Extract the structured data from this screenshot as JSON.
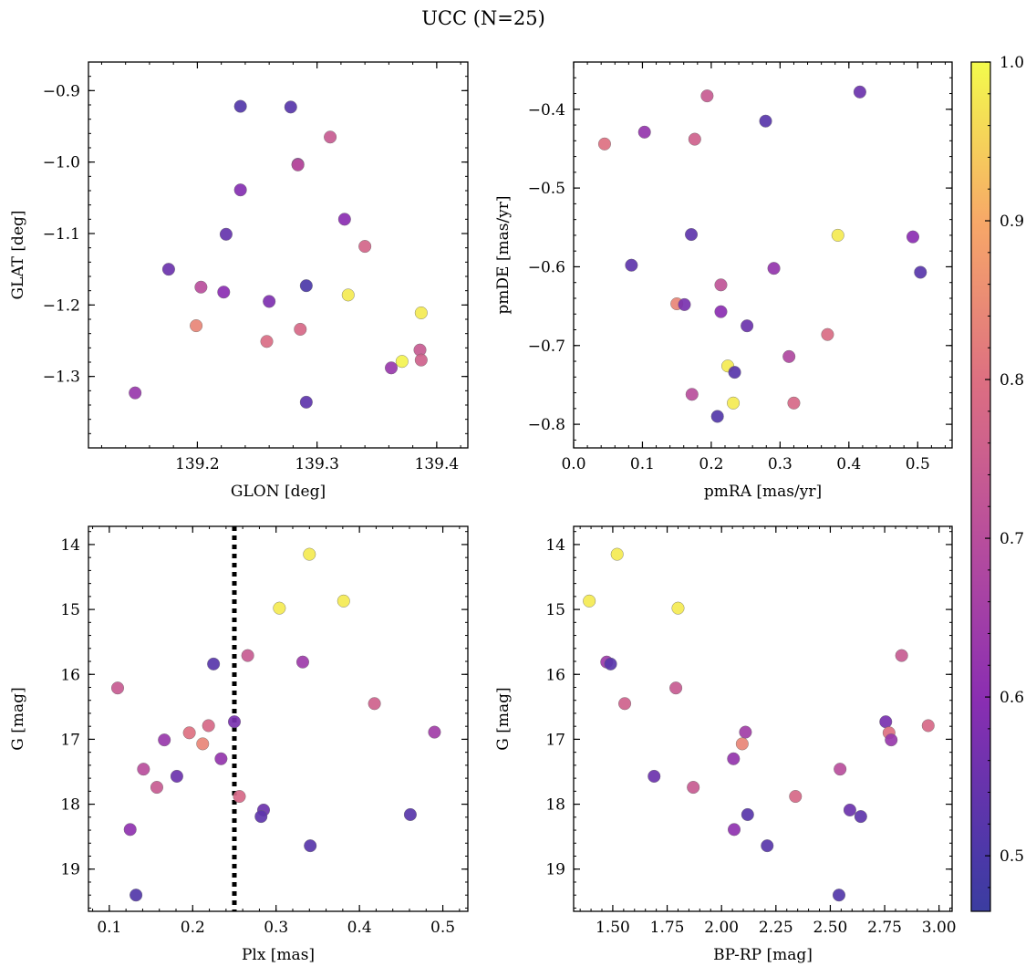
{
  "figure": {
    "title": "UCC (N=25)"
  },
  "colorbar": {
    "colormap": "plasma",
    "range": [
      0.465,
      1.0
    ],
    "ticks": [
      0.5,
      0.6,
      0.7,
      0.8,
      0.9,
      1.0
    ],
    "tick_labels": [
      "0.5",
      "0.6",
      "0.7",
      "0.8",
      "0.9",
      "1.0"
    ]
  },
  "chart_data": [
    {
      "type": "scatter",
      "xlabel": "GLON [deg]",
      "ylabel": "GLAT [deg]",
      "xlim": [
        139.109,
        139.426
      ],
      "ylim": [
        -1.4,
        -0.86
      ],
      "y_inverted": false,
      "xticks": [
        139.2,
        139.3,
        139.4
      ],
      "xtick_labels": [
        "139.2",
        "139.3",
        "139.4"
      ],
      "yticks": [
        -0.9,
        -1.0,
        -1.1,
        -1.2,
        -1.3
      ],
      "ytick_labels": [
        "−0.9",
        "−1.0",
        "−1.1",
        "−1.2",
        "−1.3"
      ],
      "points": [
        {
          "x": 139.236,
          "y": -0.922,
          "c": 0.51
        },
        {
          "x": 139.278,
          "y": -0.923,
          "c": 0.52
        },
        {
          "x": 139.311,
          "y": -0.965,
          "c": 0.74
        },
        {
          "x": 139.284,
          "y": -1.003,
          "c": 0.62
        },
        {
          "x": 139.284,
          "y": -1.004,
          "c": 0.7
        },
        {
          "x": 139.236,
          "y": -1.039,
          "c": 0.59
        },
        {
          "x": 139.323,
          "y": -1.08,
          "c": 0.6
        },
        {
          "x": 139.224,
          "y": -1.101,
          "c": 0.54
        },
        {
          "x": 139.34,
          "y": -1.118,
          "c": 0.77
        },
        {
          "x": 139.176,
          "y": -1.15,
          "c": 0.55
        },
        {
          "x": 139.203,
          "y": -1.175,
          "c": 0.7
        },
        {
          "x": 139.222,
          "y": -1.182,
          "c": 0.6
        },
        {
          "x": 139.291,
          "y": -1.173,
          "c": 0.5
        },
        {
          "x": 139.326,
          "y": -1.186,
          "c": 0.98
        },
        {
          "x": 139.26,
          "y": -1.195,
          "c": 0.58
        },
        {
          "x": 139.387,
          "y": -1.211,
          "c": 0.98
        },
        {
          "x": 139.199,
          "y": -1.229,
          "c": 0.84
        },
        {
          "x": 139.286,
          "y": -1.234,
          "c": 0.78
        },
        {
          "x": 139.258,
          "y": -1.251,
          "c": 0.79
        },
        {
          "x": 139.386,
          "y": -1.263,
          "c": 0.74
        },
        {
          "x": 139.371,
          "y": -1.279,
          "c": 0.99
        },
        {
          "x": 139.387,
          "y": -1.277,
          "c": 0.76
        },
        {
          "x": 139.362,
          "y": -1.288,
          "c": 0.63
        },
        {
          "x": 139.148,
          "y": -1.323,
          "c": 0.63
        },
        {
          "x": 139.291,
          "y": -1.336,
          "c": 0.53
        }
      ]
    },
    {
      "type": "scatter",
      "xlabel": "pmRA [mas/yr]",
      "ylabel": "pmDE [mas/yr]",
      "xlim": [
        0.0,
        0.55
      ],
      "ylim": [
        -0.83,
        -0.34
      ],
      "y_inverted": false,
      "xticks": [
        0.0,
        0.1,
        0.2,
        0.3,
        0.4,
        0.5
      ],
      "xtick_labels": [
        "0.0",
        "0.1",
        "0.2",
        "0.3",
        "0.4",
        "0.5"
      ],
      "yticks": [
        -0.4,
        -0.5,
        -0.6,
        -0.7,
        -0.8
      ],
      "ytick_labels": [
        "−0.4",
        "−0.5",
        "−0.6",
        "−0.7",
        "−0.8"
      ],
      "points": [
        {
          "x": 0.194,
          "y": -0.383,
          "c": 0.74
        },
        {
          "x": 0.416,
          "y": -0.378,
          "c": 0.55
        },
        {
          "x": 0.279,
          "y": -0.415,
          "c": 0.52
        },
        {
          "x": 0.103,
          "y": -0.429,
          "c": 0.62
        },
        {
          "x": 0.176,
          "y": -0.438,
          "c": 0.76
        },
        {
          "x": 0.045,
          "y": -0.444,
          "c": 0.8
        },
        {
          "x": 0.384,
          "y": -0.56,
          "c": 0.98
        },
        {
          "x": 0.171,
          "y": -0.559,
          "c": 0.53
        },
        {
          "x": 0.493,
          "y": -0.562,
          "c": 0.6
        },
        {
          "x": 0.084,
          "y": -0.598,
          "c": 0.53
        },
        {
          "x": 0.291,
          "y": -0.602,
          "c": 0.62
        },
        {
          "x": 0.504,
          "y": -0.607,
          "c": 0.52
        },
        {
          "x": 0.214,
          "y": -0.623,
          "c": 0.72
        },
        {
          "x": 0.15,
          "y": -0.647,
          "c": 0.84
        },
        {
          "x": 0.161,
          "y": -0.648,
          "c": 0.57
        },
        {
          "x": 0.214,
          "y": -0.657,
          "c": 0.6
        },
        {
          "x": 0.252,
          "y": -0.675,
          "c": 0.55
        },
        {
          "x": 0.369,
          "y": -0.686,
          "c": 0.79
        },
        {
          "x": 0.313,
          "y": -0.714,
          "c": 0.68
        },
        {
          "x": 0.224,
          "y": -0.726,
          "c": 0.98
        },
        {
          "x": 0.234,
          "y": -0.734,
          "c": 0.52
        },
        {
          "x": 0.172,
          "y": -0.762,
          "c": 0.7
        },
        {
          "x": 0.232,
          "y": -0.773,
          "c": 0.98
        },
        {
          "x": 0.32,
          "y": -0.773,
          "c": 0.78
        },
        {
          "x": 0.209,
          "y": -0.79,
          "c": 0.51
        }
      ]
    },
    {
      "type": "scatter",
      "xlabel": "Plx [mas]",
      "ylabel": "G [mag]",
      "xlim": [
        0.075,
        0.53
      ],
      "ylim": [
        19.65,
        13.72
      ],
      "y_inverted": true,
      "xticks": [
        0.1,
        0.2,
        0.3,
        0.4,
        0.5
      ],
      "xtick_labels": [
        "0.1",
        "0.2",
        "0.3",
        "0.4",
        "0.5"
      ],
      "yticks": [
        14,
        15,
        16,
        17,
        18,
        19
      ],
      "ytick_labels": [
        "14",
        "15",
        "16",
        "17",
        "18",
        "19"
      ],
      "vline": {
        "x": 0.25,
        "style": "dotted"
      },
      "points": [
        {
          "x": 0.34,
          "y": 14.15,
          "c": 0.98
        },
        {
          "x": 0.304,
          "y": 14.98,
          "c": 0.98
        },
        {
          "x": 0.381,
          "y": 14.87,
          "c": 0.98
        },
        {
          "x": 0.266,
          "y": 15.71,
          "c": 0.74
        },
        {
          "x": 0.332,
          "y": 15.81,
          "c": 0.64
        },
        {
          "x": 0.225,
          "y": 15.84,
          "c": 0.52
        },
        {
          "x": 0.11,
          "y": 16.21,
          "c": 0.74
        },
        {
          "x": 0.418,
          "y": 16.45,
          "c": 0.76
        },
        {
          "x": 0.25,
          "y": 16.73,
          "c": 0.57
        },
        {
          "x": 0.219,
          "y": 16.79,
          "c": 0.78
        },
        {
          "x": 0.196,
          "y": 16.9,
          "c": 0.8
        },
        {
          "x": 0.49,
          "y": 16.89,
          "c": 0.65
        },
        {
          "x": 0.166,
          "y": 17.01,
          "c": 0.63
        },
        {
          "x": 0.212,
          "y": 17.07,
          "c": 0.84
        },
        {
          "x": 0.234,
          "y": 17.3,
          "c": 0.62
        },
        {
          "x": 0.141,
          "y": 17.46,
          "c": 0.7
        },
        {
          "x": 0.181,
          "y": 17.57,
          "c": 0.55
        },
        {
          "x": 0.157,
          "y": 17.74,
          "c": 0.74
        },
        {
          "x": 0.256,
          "y": 17.88,
          "c": 0.78
        },
        {
          "x": 0.285,
          "y": 18.09,
          "c": 0.55
        },
        {
          "x": 0.282,
          "y": 18.19,
          "c": 0.53
        },
        {
          "x": 0.461,
          "y": 18.16,
          "c": 0.52
        },
        {
          "x": 0.125,
          "y": 18.39,
          "c": 0.61
        },
        {
          "x": 0.341,
          "y": 18.64,
          "c": 0.52
        },
        {
          "x": 0.132,
          "y": 19.4,
          "c": 0.51
        }
      ]
    },
    {
      "type": "scatter",
      "xlabel": "BP-RP [mag]",
      "ylabel": "G [mag]",
      "xlim": [
        1.32,
        3.06
      ],
      "ylim": [
        19.65,
        13.72
      ],
      "y_inverted": true,
      "xticks": [
        1.5,
        1.75,
        2.0,
        2.25,
        2.5,
        2.75,
        3.0
      ],
      "xtick_labels": [
        "1.50",
        "1.75",
        "2.00",
        "2.25",
        "2.50",
        "2.75",
        "3.00"
      ],
      "yticks": [
        14,
        15,
        16,
        17,
        18,
        19
      ],
      "ytick_labels": [
        "14",
        "15",
        "16",
        "17",
        "18",
        "19"
      ],
      "points": [
        {
          "x": 1.52,
          "y": 14.15,
          "c": 0.98
        },
        {
          "x": 1.392,
          "y": 14.87,
          "c": 0.98
        },
        {
          "x": 1.8,
          "y": 14.98,
          "c": 0.98
        },
        {
          "x": 2.828,
          "y": 15.71,
          "c": 0.74
        },
        {
          "x": 1.472,
          "y": 15.81,
          "c": 0.64
        },
        {
          "x": 1.49,
          "y": 15.84,
          "c": 0.52
        },
        {
          "x": 1.79,
          "y": 16.21,
          "c": 0.74
        },
        {
          "x": 1.555,
          "y": 16.45,
          "c": 0.76
        },
        {
          "x": 2.755,
          "y": 16.73,
          "c": 0.57
        },
        {
          "x": 2.95,
          "y": 16.79,
          "c": 0.78
        },
        {
          "x": 2.77,
          "y": 16.9,
          "c": 0.8
        },
        {
          "x": 2.11,
          "y": 16.89,
          "c": 0.65
        },
        {
          "x": 2.78,
          "y": 17.01,
          "c": 0.63
        },
        {
          "x": 2.095,
          "y": 17.07,
          "c": 0.84
        },
        {
          "x": 2.055,
          "y": 17.3,
          "c": 0.62
        },
        {
          "x": 2.545,
          "y": 17.46,
          "c": 0.7
        },
        {
          "x": 1.69,
          "y": 17.57,
          "c": 0.55
        },
        {
          "x": 1.87,
          "y": 17.74,
          "c": 0.74
        },
        {
          "x": 2.34,
          "y": 17.88,
          "c": 0.78
        },
        {
          "x": 2.59,
          "y": 18.09,
          "c": 0.55
        },
        {
          "x": 2.64,
          "y": 18.19,
          "c": 0.53
        },
        {
          "x": 2.12,
          "y": 18.16,
          "c": 0.52
        },
        {
          "x": 2.058,
          "y": 18.39,
          "c": 0.61
        },
        {
          "x": 2.21,
          "y": 18.64,
          "c": 0.52
        },
        {
          "x": 2.54,
          "y": 19.4,
          "c": 0.51
        }
      ]
    }
  ]
}
